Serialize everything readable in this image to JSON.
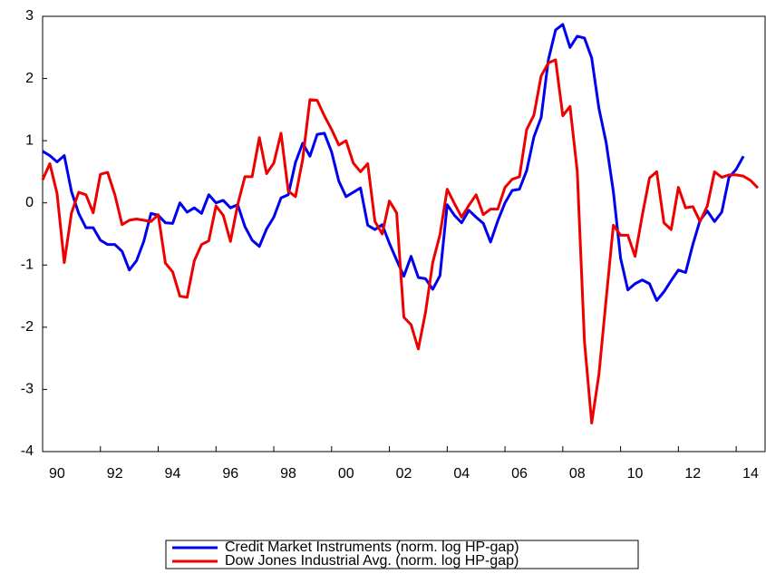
{
  "chart_data": {
    "type": "line",
    "x": [
      1990,
      1990.25,
      1990.5,
      1990.75,
      1991,
      1991.25,
      1991.5,
      1991.75,
      1992,
      1992.25,
      1992.5,
      1992.75,
      1993,
      1993.25,
      1993.5,
      1993.75,
      1994,
      1994.25,
      1994.5,
      1994.75,
      1995,
      1995.25,
      1995.5,
      1995.75,
      1996,
      1996.25,
      1996.5,
      1996.75,
      1997,
      1997.25,
      1997.5,
      1997.75,
      1998,
      1998.25,
      1998.5,
      1998.75,
      1999,
      1999.25,
      1999.5,
      1999.75,
      2000,
      2000.25,
      2000.5,
      2000.75,
      2001,
      2001.25,
      2001.5,
      2001.75,
      2002,
      2002.25,
      2002.5,
      2002.75,
      2003,
      2003.25,
      2003.5,
      2003.75,
      2004,
      2004.25,
      2004.5,
      2004.75,
      2005,
      2005.25,
      2005.5,
      2005.75,
      2006,
      2006.25,
      2006.5,
      2006.75,
      2007,
      2007.25,
      2007.5,
      2007.75,
      2008,
      2008.25,
      2008.5,
      2008.75,
      2009,
      2009.25,
      2009.5,
      2009.75,
      2010,
      2010.25,
      2010.5,
      2010.75,
      2011,
      2011.25,
      2011.5,
      2011.75,
      2012,
      2012.25,
      2012.5,
      2012.75,
      2013,
      2013.25,
      2013.5,
      2013.75,
      2014,
      2014.25,
      2014.5,
      2014.75
    ],
    "series": [
      {
        "name": "Credit Market Instruments (norm. log HP-gap)",
        "color": "#0000ee",
        "values": [
          0.83,
          0.76,
          0.66,
          0.76,
          0.18,
          -0.17,
          -0.4,
          -0.4,
          -0.6,
          -0.67,
          -0.67,
          -0.78,
          -1.08,
          -0.93,
          -0.62,
          -0.17,
          -0.2,
          -0.32,
          -0.33,
          0.0,
          -0.15,
          -0.08,
          -0.17,
          0.13,
          0.0,
          0.04,
          -0.08,
          -0.03,
          -0.38,
          -0.6,
          -0.7,
          -0.42,
          -0.23,
          0.08,
          0.13,
          0.65,
          0.96,
          0.75,
          1.1,
          1.12,
          0.82,
          0.35,
          0.1,
          0.17,
          0.24,
          -0.36,
          -0.43,
          -0.35,
          -0.65,
          -0.92,
          -1.18,
          -0.86,
          -1.2,
          -1.22,
          -1.39,
          -1.17,
          -0.03,
          -0.2,
          -0.32,
          -0.12,
          -0.23,
          -0.33,
          -0.63,
          -0.29,
          0.0,
          0.2,
          0.22,
          0.52,
          1.06,
          1.37,
          2.3,
          2.78,
          2.87,
          2.5,
          2.68,
          2.65,
          2.33,
          1.52,
          0.97,
          0.18,
          -0.89,
          -1.4,
          -1.3,
          -1.24,
          -1.3,
          -1.57,
          -1.43,
          -1.25,
          -1.08,
          -1.12,
          -0.67,
          -0.28,
          -0.13,
          -0.3,
          -0.15,
          0.41,
          0.54,
          0.75,
          null,
          null
        ]
      },
      {
        "name": "Dow Jones Industrial Avg. (norm. log HP-gap)",
        "color": "#ee0000",
        "values": [
          0.37,
          0.63,
          0.15,
          -0.96,
          -0.16,
          0.17,
          0.13,
          -0.16,
          0.46,
          0.49,
          0.13,
          -0.35,
          -0.28,
          -0.26,
          -0.28,
          -0.3,
          -0.19,
          -0.97,
          -1.11,
          -1.5,
          -1.52,
          -0.93,
          -0.67,
          -0.61,
          -0.05,
          -0.2,
          -0.62,
          -0.03,
          0.42,
          0.42,
          1.05,
          0.47,
          0.64,
          1.12,
          0.19,
          0.1,
          0.7,
          1.66,
          1.65,
          1.4,
          1.18,
          0.93,
          1.0,
          0.64,
          0.5,
          0.63,
          -0.3,
          -0.5,
          0.03,
          -0.16,
          -1.84,
          -1.96,
          -2.35,
          -1.76,
          -0.96,
          -0.51,
          0.22,
          -0.01,
          -0.23,
          -0.04,
          0.13,
          -0.19,
          -0.1,
          -0.1,
          0.25,
          0.38,
          0.42,
          1.18,
          1.41,
          2.04,
          2.25,
          2.3,
          1.4,
          1.55,
          0.51,
          -2.23,
          -3.54,
          -2.76,
          -1.55,
          -0.36,
          -0.52,
          -0.52,
          -0.86,
          -0.2,
          0.4,
          0.5,
          -0.32,
          -0.43,
          0.25,
          -0.08,
          -0.06,
          -0.3,
          -0.05,
          0.5,
          0.41,
          0.45,
          0.45,
          0.43,
          0.36,
          0.24
        ]
      }
    ],
    "xlim": [
      1990,
      2015
    ],
    "xticks": [
      {
        "value": 1990,
        "label": "90"
      },
      {
        "value": 1992,
        "label": "92"
      },
      {
        "value": 1994,
        "label": "94"
      },
      {
        "value": 1996,
        "label": "96"
      },
      {
        "value": 1998,
        "label": "98"
      },
      {
        "value": 2000,
        "label": "00"
      },
      {
        "value": 2002,
        "label": "02"
      },
      {
        "value": 2004,
        "label": "04"
      },
      {
        "value": 2006,
        "label": "06"
      },
      {
        "value": 2008,
        "label": "08"
      },
      {
        "value": 2010,
        "label": "10"
      },
      {
        "value": 2012,
        "label": "12"
      },
      {
        "value": 2014,
        "label": "14"
      }
    ],
    "ylim": [
      -4,
      3
    ],
    "yticks": [
      -4,
      -3,
      -2,
      -1,
      0,
      1,
      2,
      3
    ],
    "legend": "bottom"
  }
}
